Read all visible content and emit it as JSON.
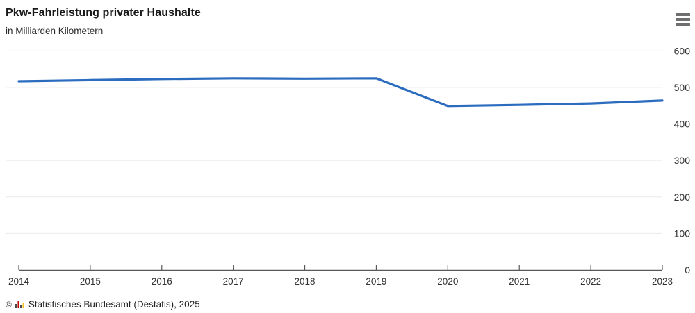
{
  "header": {
    "title": "Pkw-Fahrleistung privater Haushalte",
    "subtitle": "in Milliarden Kilometern",
    "menu_icon": "hamburger-menu-icon"
  },
  "chart_data": {
    "type": "line",
    "title": "Pkw-Fahrleistung privater Haushalte",
    "subtitle": "in Milliarden Kilometern",
    "x": [
      2014,
      2015,
      2016,
      2017,
      2018,
      2019,
      2020,
      2021,
      2022,
      2023
    ],
    "series": [
      {
        "name": "Pkw-Fahrleistung privater Haushalte",
        "values": [
          517,
          520,
          523,
          525,
          524,
          525,
          449,
          452,
          456,
          464
        ]
      }
    ],
    "xlabel": "",
    "ylabel": "in Milliarden Kilometern",
    "ylim": [
      0,
      600
    ],
    "y_ticks": [
      0,
      100,
      200,
      300,
      400,
      500,
      600
    ],
    "y_axis_side": "right",
    "grid": true,
    "legend": "none",
    "line_color": "#2b6cbf",
    "axis_color": "#58585a",
    "gridline_color": "#e9e9e9",
    "label_color": "#333333"
  },
  "footer": {
    "copyright": "©",
    "source": "Statistisches Bundesamt (Destatis), 2025",
    "logo_icon": "destatis-bars-logo",
    "logo_colors": [
      "#4a4a4a",
      "#c00000",
      "#4a4a4a",
      "#f0c020"
    ]
  }
}
